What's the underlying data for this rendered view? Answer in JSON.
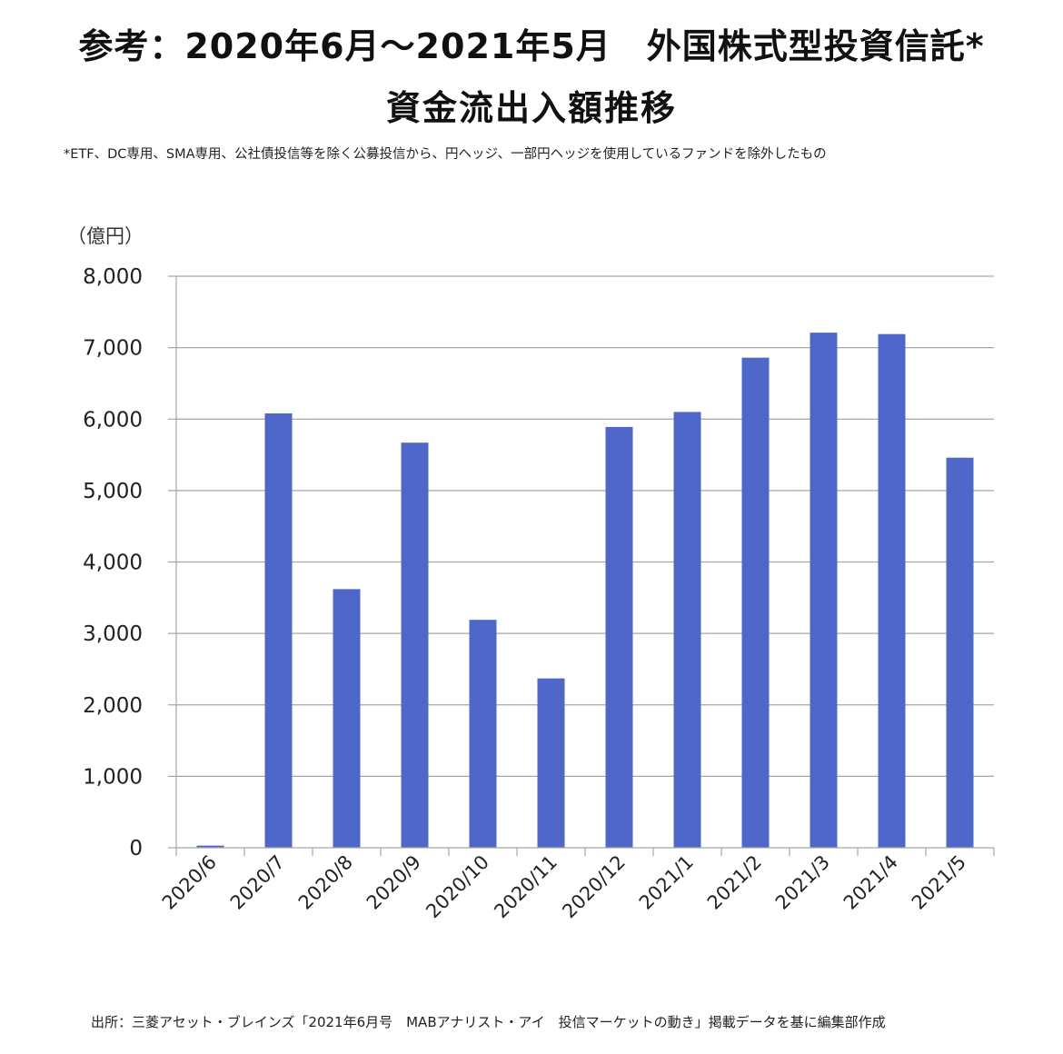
{
  "title_line1": "参考：2020年6月～2021年5月　外国株式型投資信託*",
  "title_line2": "資金流出入額推移",
  "footnote": "*ETF、DC専用、SMA専用、公社債投信等を除く公募投信から、円ヘッジ、一部円ヘッジを使用しているファンドを除外したもの",
  "source": "出所：三菱アセット・ブレインズ「2021年6月号　MABアナリスト・アイ　投信マーケットの動き」掲載データを基に編集部作成",
  "chart_data": {
    "type": "bar",
    "ylabel": "（億円）",
    "categories": [
      "2020/6",
      "2020/7",
      "2020/8",
      "2020/9",
      "2020/10",
      "2020/11",
      "2020/12",
      "2021/1",
      "2021/2",
      "2021/3",
      "2021/4",
      "2021/5"
    ],
    "values": [
      30,
      6080,
      3620,
      5670,
      3190,
      2370,
      5890,
      6100,
      6860,
      7210,
      7190,
      5460
    ],
    "yticks": [
      "0",
      "1,000",
      "2,000",
      "3,000",
      "4,000",
      "5,000",
      "6,000",
      "7,000",
      "8,000"
    ],
    "ylim": [
      0,
      8000
    ],
    "grid": true,
    "bar_color": "#4E67C8"
  }
}
